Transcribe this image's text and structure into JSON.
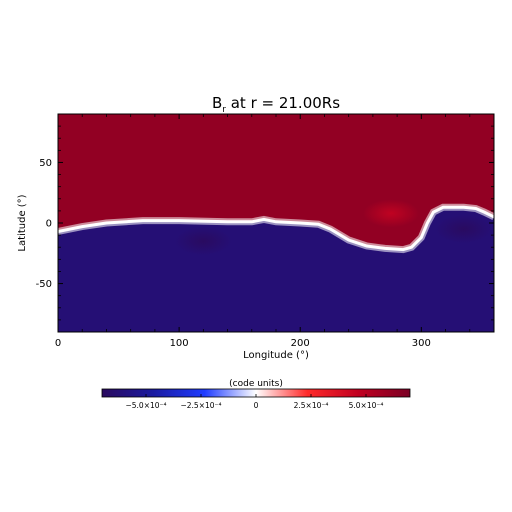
{
  "chart_data": {
    "type": "heatmap",
    "title": "B_r at r = 21.00Rs",
    "title_main": "B",
    "title_sub": "r",
    "title_rest": " at r = 21.00Rs",
    "xlabel": "Longitude (°)",
    "ylabel": "Latitude (°)",
    "xlim": [
      0,
      360
    ],
    "ylim": [
      -90,
      90
    ],
    "xticks": [
      0,
      100,
      200,
      300
    ],
    "yticks": [
      -50,
      0,
      50
    ],
    "colorbar": {
      "label": "(code units)",
      "range": [
        -0.0007,
        0.0007
      ],
      "ticks": [
        {
          "value": -0.0005,
          "label": "−5.0×10⁻⁴"
        },
        {
          "value": -0.00025,
          "label": "−2.5×10⁻⁴"
        },
        {
          "value": 0,
          "label": "0"
        },
        {
          "value": 0.00025,
          "label": "2.5×10⁻⁴"
        },
        {
          "value": 0.0005,
          "label": "5.0×10⁻⁴"
        }
      ],
      "colors": [
        "#2a0a5e",
        "#1a1aa0",
        "#1f3cff",
        "#ffffff",
        "#ff2a2a",
        "#c00020",
        "#7a0024"
      ]
    },
    "neutral_line": {
      "x": [
        0,
        20,
        40,
        70,
        100,
        140,
        160,
        170,
        180,
        200,
        215,
        225,
        240,
        255,
        270,
        285,
        292,
        300,
        305,
        310,
        318,
        325,
        335,
        345,
        352,
        360
      ],
      "y": [
        -7,
        -3,
        0,
        2,
        2,
        1,
        1,
        3,
        1,
        0,
        -1,
        -5,
        -14,
        -19,
        -21,
        -22,
        -20,
        -12,
        0,
        9,
        13,
        13,
        13,
        12,
        9,
        5
      ]
    },
    "field": {
      "positive_value": 0.00062,
      "negative_value": -0.00062,
      "features": [
        {
          "lon": 275,
          "lat": 8,
          "value": 0.00045
        },
        {
          "lon": 335,
          "lat": -5,
          "value": -0.0007
        },
        {
          "lon": 120,
          "lat": -15,
          "value": -0.0007
        }
      ]
    }
  }
}
